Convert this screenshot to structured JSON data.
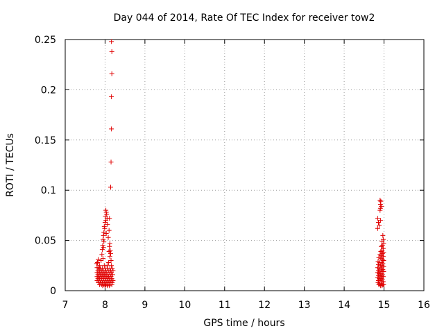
{
  "chart_data": {
    "type": "scatter",
    "title": "Day 044 of 2014, Rate Of TEC Index for receiver tow2",
    "xlabel": "GPS time / hours",
    "ylabel": "ROTI / TECUs",
    "xlim": [
      7,
      16
    ],
    "ylim": [
      0,
      0.25
    ],
    "x_ticks": [
      7,
      8,
      9,
      10,
      11,
      12,
      13,
      14,
      15,
      16
    ],
    "y_ticks": [
      0,
      0.05,
      0.1,
      0.15,
      0.2,
      0.25
    ],
    "x_tick_labels": [
      "7",
      "8",
      "9",
      "10",
      "11",
      "12",
      "13",
      "14",
      "15",
      "16"
    ],
    "y_tick_labels": [
      "0",
      "0.05",
      "0.1",
      "0.15",
      "0.2",
      "0.25"
    ],
    "grid": true,
    "marker": "+",
    "marker_color": "#e00000",
    "series": [
      {
        "name": "ROTI tow2",
        "points": [
          [
            8.16,
            0.248
          ],
          [
            8.17,
            0.238
          ],
          [
            8.17,
            0.216
          ],
          [
            8.16,
            0.193
          ],
          [
            8.16,
            0.161
          ],
          [
            8.15,
            0.128
          ],
          [
            8.14,
            0.103
          ],
          [
            8.02,
            0.08
          ],
          [
            8.03,
            0.078
          ],
          [
            8.04,
            0.076
          ],
          [
            8.01,
            0.074
          ],
          [
            8.05,
            0.072
          ],
          [
            8.11,
            0.072
          ],
          [
            8.02,
            0.07
          ],
          [
            8.0,
            0.068
          ],
          [
            8.06,
            0.066
          ],
          [
            7.98,
            0.064
          ],
          [
            7.99,
            0.062
          ],
          [
            8.1,
            0.06
          ],
          [
            7.97,
            0.058
          ],
          [
            8.03,
            0.057
          ],
          [
            7.96,
            0.055
          ],
          [
            8.08,
            0.053
          ],
          [
            7.95,
            0.051
          ],
          [
            7.97,
            0.049
          ],
          [
            8.12,
            0.047
          ],
          [
            7.94,
            0.045
          ],
          [
            8.11,
            0.044
          ],
          [
            7.96,
            0.043
          ],
          [
            7.93,
            0.041
          ],
          [
            8.13,
            0.04
          ],
          [
            8.1,
            0.039
          ],
          [
            8.14,
            0.037
          ],
          [
            7.92,
            0.036
          ],
          [
            8.12,
            0.034
          ],
          [
            7.95,
            0.032
          ],
          [
            7.83,
            0.031
          ],
          [
            7.81,
            0.028
          ],
          [
            7.79,
            0.027
          ],
          [
            8.15,
            0.03
          ],
          [
            7.9,
            0.03
          ],
          [
            8.09,
            0.028
          ],
          [
            7.86,
            0.025
          ],
          [
            7.98,
            0.025
          ],
          [
            8.05,
            0.025
          ],
          [
            8.16,
            0.025
          ],
          [
            7.8,
            0.023
          ],
          [
            7.84,
            0.023
          ],
          [
            7.88,
            0.022
          ],
          [
            7.93,
            0.022
          ],
          [
            8.0,
            0.022
          ],
          [
            8.06,
            0.022
          ],
          [
            8.12,
            0.022
          ],
          [
            8.18,
            0.022
          ],
          [
            7.82,
            0.02
          ],
          [
            7.86,
            0.02
          ],
          [
            7.91,
            0.02
          ],
          [
            7.96,
            0.02
          ],
          [
            8.02,
            0.02
          ],
          [
            8.08,
            0.02
          ],
          [
            8.14,
            0.02
          ],
          [
            8.2,
            0.02
          ],
          [
            7.8,
            0.018
          ],
          [
            7.85,
            0.018
          ],
          [
            7.89,
            0.018
          ],
          [
            7.94,
            0.018
          ],
          [
            7.99,
            0.018
          ],
          [
            8.04,
            0.018
          ],
          [
            8.1,
            0.018
          ],
          [
            8.16,
            0.018
          ],
          [
            7.82,
            0.016
          ],
          [
            7.87,
            0.016
          ],
          [
            7.92,
            0.016
          ],
          [
            7.97,
            0.016
          ],
          [
            8.01,
            0.016
          ],
          [
            8.07,
            0.016
          ],
          [
            8.13,
            0.016
          ],
          [
            8.19,
            0.016
          ],
          [
            7.8,
            0.014
          ],
          [
            7.84,
            0.014
          ],
          [
            7.89,
            0.014
          ],
          [
            7.94,
            0.014
          ],
          [
            7.99,
            0.014
          ],
          [
            8.04,
            0.014
          ],
          [
            8.09,
            0.014
          ],
          [
            8.15,
            0.014
          ],
          [
            7.82,
            0.012
          ],
          [
            7.86,
            0.012
          ],
          [
            7.91,
            0.012
          ],
          [
            7.96,
            0.012
          ],
          [
            8.01,
            0.012
          ],
          [
            8.06,
            0.012
          ],
          [
            8.11,
            0.012
          ],
          [
            8.17,
            0.012
          ],
          [
            7.8,
            0.01
          ],
          [
            7.85,
            0.01
          ],
          [
            7.9,
            0.01
          ],
          [
            7.95,
            0.01
          ],
          [
            8.0,
            0.01
          ],
          [
            8.05,
            0.01
          ],
          [
            8.1,
            0.01
          ],
          [
            8.15,
            0.01
          ],
          [
            8.2,
            0.01
          ],
          [
            7.83,
            0.008
          ],
          [
            7.88,
            0.008
          ],
          [
            7.93,
            0.008
          ],
          [
            7.98,
            0.008
          ],
          [
            8.03,
            0.008
          ],
          [
            8.08,
            0.008
          ],
          [
            8.13,
            0.008
          ],
          [
            8.18,
            0.008
          ],
          [
            7.86,
            0.006
          ],
          [
            7.91,
            0.006
          ],
          [
            7.97,
            0.006
          ],
          [
            8.02,
            0.006
          ],
          [
            8.07,
            0.006
          ],
          [
            8.12,
            0.006
          ],
          [
            8.17,
            0.006
          ],
          [
            7.94,
            0.005
          ],
          [
            8.0,
            0.005
          ],
          [
            8.06,
            0.005
          ],
          [
            8.11,
            0.005
          ],
          [
            14.9,
            0.09
          ],
          [
            14.92,
            0.089
          ],
          [
            14.91,
            0.086
          ],
          [
            14.93,
            0.084
          ],
          [
            14.91,
            0.082
          ],
          [
            14.9,
            0.08
          ],
          [
            14.84,
            0.072
          ],
          [
            14.91,
            0.07
          ],
          [
            14.86,
            0.068
          ],
          [
            14.88,
            0.065
          ],
          [
            14.84,
            0.062
          ],
          [
            14.97,
            0.055
          ],
          [
            14.98,
            0.051
          ],
          [
            14.95,
            0.049
          ],
          [
            14.99,
            0.047
          ],
          [
            14.96,
            0.045
          ],
          [
            14.93,
            0.044
          ],
          [
            14.98,
            0.042
          ],
          [
            14.95,
            0.04
          ],
          [
            14.92,
            0.039
          ],
          [
            14.99,
            0.038
          ],
          [
            14.96,
            0.037
          ],
          [
            14.9,
            0.036
          ],
          [
            14.94,
            0.035
          ],
          [
            14.98,
            0.034
          ],
          [
            14.87,
            0.033
          ],
          [
            14.92,
            0.032
          ],
          [
            14.96,
            0.031
          ],
          [
            14.99,
            0.03
          ],
          [
            14.85,
            0.029
          ],
          [
            14.89,
            0.028
          ],
          [
            14.94,
            0.028
          ],
          [
            14.97,
            0.027
          ],
          [
            14.86,
            0.026
          ],
          [
            14.91,
            0.025
          ],
          [
            14.95,
            0.025
          ],
          [
            14.99,
            0.024
          ],
          [
            14.84,
            0.023
          ],
          [
            14.88,
            0.022
          ],
          [
            14.93,
            0.022
          ],
          [
            14.97,
            0.021
          ],
          [
            14.86,
            0.02
          ],
          [
            14.9,
            0.02
          ],
          [
            14.95,
            0.019
          ],
          [
            14.99,
            0.019
          ],
          [
            14.84,
            0.018
          ],
          [
            14.88,
            0.017
          ],
          [
            14.92,
            0.017
          ],
          [
            14.96,
            0.016
          ],
          [
            14.86,
            0.015
          ],
          [
            14.9,
            0.015
          ],
          [
            14.94,
            0.014
          ],
          [
            14.98,
            0.014
          ],
          [
            14.84,
            0.013
          ],
          [
            14.88,
            0.012
          ],
          [
            14.92,
            0.012
          ],
          [
            14.96,
            0.011
          ],
          [
            14.86,
            0.01
          ],
          [
            14.9,
            0.01
          ],
          [
            14.94,
            0.009
          ],
          [
            14.98,
            0.009
          ],
          [
            14.85,
            0.008
          ],
          [
            14.89,
            0.007
          ],
          [
            14.93,
            0.007
          ],
          [
            14.97,
            0.006
          ],
          [
            14.87,
            0.006
          ],
          [
            14.91,
            0.005
          ],
          [
            14.95,
            0.005
          ],
          [
            14.99,
            0.006
          ]
        ]
      }
    ]
  }
}
